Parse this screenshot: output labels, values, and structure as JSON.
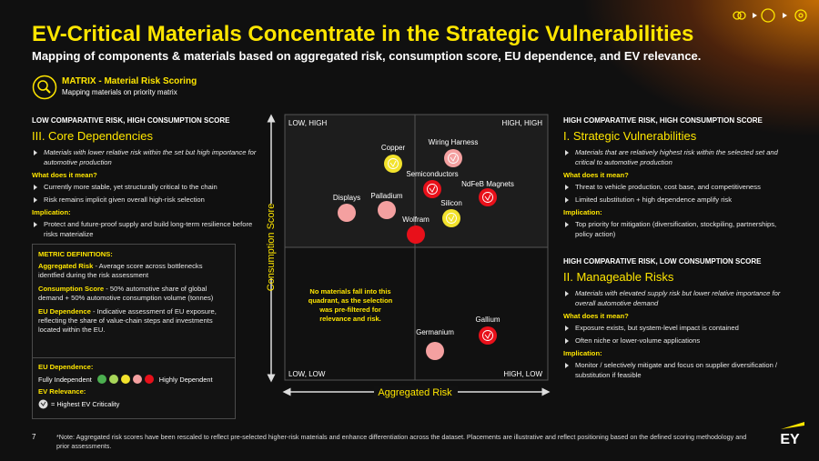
{
  "header": {
    "title": "EV-Critical Materials Concentrate in the Strategic Vulnerabilities",
    "subtitle": "Mapping of components & materials based on aggregated risk, consumption score, EU dependence, and EV relevance."
  },
  "section": {
    "title": "MATRIX - Material Risk Scoring",
    "subtitle": "Mapping materials on priority matrix"
  },
  "panels": [
    {
      "heading": "LOW COMPARATIVE RISK, HIGH CONSUMPTION SCORE",
      "title": "III. Core Dependencies",
      "description": "Materials with lower relative risk within the set but high importance for automotive production",
      "meaning_label": "What does it mean?",
      "meaning": [
        "Currently more stable, yet structurally critical to the chain",
        "Risk remains implicit given overall high-risk selection"
      ],
      "implication_label": "Implication:",
      "implication": [
        "Protect and future-proof supply and build long-term resilience before risks materialize"
      ]
    },
    {
      "heading": "HIGH COMPARATIVE RISK, HIGH CONSUMPTION SCORE",
      "title": "I. Strategic Vulnerabilities",
      "description": "Materials that are relatively highest risk within the selected set and critical to automotive production",
      "meaning_label": "What does it mean?",
      "meaning": [
        "Threat to vehicle production, cost base, and competitiveness",
        "Limited substitution + high dependence amplify risk"
      ],
      "implication_label": "Implication:",
      "implication": [
        "Top priority for mitigation (diversification, stockpiling, partnerships, policy action)"
      ]
    },
    {
      "heading": "HIGH COMPARATIVE RISK, LOW CONSUMPTION SCORE",
      "title": "II. Manageable Risks",
      "description": "Materials with elevated supply risk but lower relative importance for overall automotive demand",
      "meaning_label": "What does it mean?",
      "meaning": [
        "Exposure exists, but system-level impact is contained",
        "Often niche or lower-volume applications"
      ],
      "implication_label": "Implication:",
      "implication": [
        "Monitor / selectively mitigate and focus on supplier diversification / substitution if feasible"
      ]
    }
  ],
  "definitions": {
    "title": "METRIC DEFINITIONS:",
    "items": [
      {
        "term": "Aggregated Risk",
        "text": " - Average score across bottlenecks identfied during the risk assessment"
      },
      {
        "term": "Consumption Score",
        "text": " - 50% automotive share of global demand + 50% automotive consumption volume (tonnes)"
      },
      {
        "term": "EU Dependence",
        "text": " - Indicative assessment of EU exposure, reflecting the share of value-chain steps and investments located within the EU."
      }
    ]
  },
  "legend": {
    "eu_title": "EU Dependence:",
    "low_label": "Fully Independent",
    "high_label": "Highly Dependent",
    "colors": [
      "#4caf50",
      "#a8d65a",
      "#f2e22c",
      "#f4a0a0",
      "#e8101a"
    ],
    "ev_title": "EV Relevance:",
    "ev_label": "= Highest EV Criticality"
  },
  "matrix": {
    "quadrants": [
      "LOW, HIGH",
      "HIGH, HIGH",
      "LOW, LOW",
      "HIGH, LOW"
    ],
    "y_axis": "Consumption Score",
    "x_axis": "Aggregated Risk",
    "empty_note": "No materials fall into this quadrant, as the selection was pre-filtered for relevance and risk.",
    "materials": [
      {
        "label": "Copper",
        "color": "#f2e22c",
        "ev": true
      },
      {
        "label": "Wiring Harness",
        "color": "#f4a0a0",
        "ev": true
      },
      {
        "label": "Semiconductors",
        "color": "#e8101a",
        "ev": true
      },
      {
        "label": "NdFeB Magnets",
        "color": "#e8101a",
        "ev": true
      },
      {
        "label": "Displays",
        "color": "#f4a0a0",
        "ev": false
      },
      {
        "label": "Palladium",
        "color": "#f4a0a0",
        "ev": false
      },
      {
        "label": "Silicon",
        "color": "#f2e22c",
        "ev": true
      },
      {
        "label": "Wolfram",
        "color": "#e8101a",
        "ev": false
      },
      {
        "label": "Gallium",
        "color": "#e8101a",
        "ev": true
      },
      {
        "label": "Germanium",
        "color": "#f4a0a0",
        "ev": false
      }
    ]
  },
  "footer": {
    "page": "7",
    "note": "*Note: Aggregated risk scores have been rescaled to reflect pre-selected higher-risk materials and enhance differentiation across the dataset. Placements are illustrative and reflect positioning based on the defined scoring methodology and prior assessments.",
    "logo": "EY"
  }
}
